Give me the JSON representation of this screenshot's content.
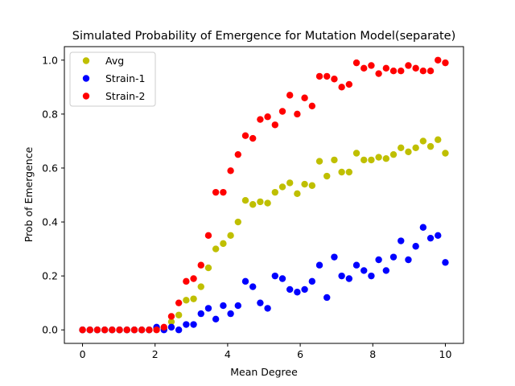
{
  "chart_data": {
    "type": "scatter",
    "title": "Simulated Probability of Emergence for Mutation Model(separate)",
    "xlabel": "Mean Degree",
    "ylabel": "Prob of Emergence",
    "xlim": [
      -0.5,
      10.5
    ],
    "ylim": [
      -0.05,
      1.05
    ],
    "xticks": [
      0,
      2,
      4,
      6,
      8,
      10
    ],
    "yticks": [
      0.0,
      0.2,
      0.4,
      0.6,
      0.8,
      1.0
    ],
    "ytick_labels": [
      "0.0",
      "0.2",
      "0.4",
      "0.6",
      "0.8",
      "1.0"
    ],
    "grid": false,
    "legend_position": "top-left",
    "x": [
      0,
      0.204,
      0.408,
      0.612,
      0.816,
      1.02,
      1.224,
      1.429,
      1.633,
      1.837,
      2.041,
      2.245,
      2.449,
      2.653,
      2.857,
      3.061,
      3.265,
      3.469,
      3.673,
      3.878,
      4.082,
      4.286,
      4.49,
      4.694,
      4.898,
      5.102,
      5.306,
      5.51,
      5.714,
      5.918,
      6.122,
      6.327,
      6.531,
      6.735,
      6.939,
      7.143,
      7.347,
      7.551,
      7.755,
      7.959,
      8.163,
      8.367,
      8.571,
      8.776,
      8.98,
      9.184,
      9.388,
      9.592,
      9.796,
      10.0
    ],
    "series": [
      {
        "name": "Avg",
        "color": "#bfbf00",
        "values": [
          0.0,
          0.0,
          0.0,
          0.0,
          0.0,
          0.0,
          0.0,
          0.0,
          0.0,
          0.0,
          0.005,
          0.005,
          0.03,
          0.055,
          0.11,
          0.115,
          0.16,
          0.23,
          0.3,
          0.32,
          0.35,
          0.4,
          0.48,
          0.465,
          0.475,
          0.47,
          0.51,
          0.53,
          0.545,
          0.505,
          0.54,
          0.535,
          0.625,
          0.57,
          0.63,
          0.585,
          0.585,
          0.655,
          0.63,
          0.63,
          0.64,
          0.635,
          0.65,
          0.675,
          0.66,
          0.675,
          0.7,
          0.68,
          0.705,
          0.655
        ]
      },
      {
        "name": "Strain-1",
        "color": "#0000ff",
        "values": [
          0.0,
          0.0,
          0.0,
          0.0,
          0.0,
          0.0,
          0.0,
          0.0,
          0.0,
          0.0,
          0.01,
          0.0,
          0.01,
          0.0,
          0.02,
          0.02,
          0.06,
          0.08,
          0.04,
          0.09,
          0.06,
          0.09,
          0.18,
          0.16,
          0.1,
          0.08,
          0.2,
          0.19,
          0.15,
          0.14,
          0.15,
          0.18,
          0.24,
          0.12,
          0.27,
          0.2,
          0.19,
          0.24,
          0.22,
          0.2,
          0.26,
          0.22,
          0.27,
          0.33,
          0.26,
          0.31,
          0.38,
          0.34,
          0.35,
          0.25
        ]
      },
      {
        "name": "Strain-2",
        "color": "#ff0000",
        "values": [
          0.0,
          0.0,
          0.0,
          0.0,
          0.0,
          0.0,
          0.0,
          0.0,
          0.0,
          0.0,
          0.0,
          0.01,
          0.05,
          0.1,
          0.18,
          0.19,
          0.24,
          0.35,
          0.51,
          0.51,
          0.59,
          0.65,
          0.72,
          0.71,
          0.78,
          0.79,
          0.76,
          0.81,
          0.87,
          0.8,
          0.86,
          0.83,
          0.94,
          0.94,
          0.93,
          0.9,
          0.91,
          0.99,
          0.97,
          0.98,
          0.95,
          0.97,
          0.96,
          0.96,
          0.98,
          0.97,
          0.96,
          0.96,
          1.0,
          0.99
        ]
      }
    ]
  }
}
